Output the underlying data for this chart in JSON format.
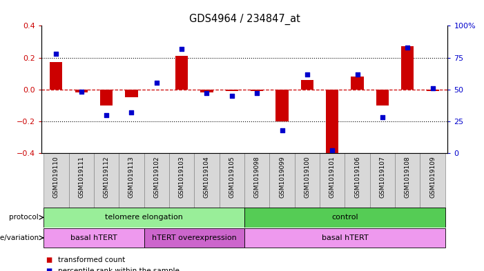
{
  "title": "GDS4964 / 234847_at",
  "samples": [
    "GSM1019110",
    "GSM1019111",
    "GSM1019112",
    "GSM1019113",
    "GSM1019102",
    "GSM1019103",
    "GSM1019104",
    "GSM1019105",
    "GSM1019098",
    "GSM1019099",
    "GSM1019100",
    "GSM1019101",
    "GSM1019106",
    "GSM1019107",
    "GSM1019108",
    "GSM1019109"
  ],
  "bar_values": [
    0.17,
    -0.02,
    -0.1,
    -0.05,
    0.0,
    0.21,
    -0.02,
    -0.01,
    -0.01,
    -0.2,
    0.06,
    -0.4,
    0.08,
    -0.1,
    0.27,
    -0.01
  ],
  "dot_values": [
    78,
    48,
    30,
    32,
    55,
    82,
    47,
    45,
    47,
    18,
    62,
    2,
    62,
    28,
    83,
    51
  ],
  "bar_color": "#cc0000",
  "dot_color": "#0000cc",
  "ylim_left": [
    -0.4,
    0.4
  ],
  "ylim_right": [
    0,
    100
  ],
  "yticks_left": [
    -0.4,
    -0.2,
    0.0,
    0.2,
    0.4
  ],
  "yticks_right": [
    0,
    25,
    50,
    75,
    100
  ],
  "ytick_labels_right": [
    "0",
    "25",
    "50",
    "75",
    "100%"
  ],
  "dotted_lines": [
    -0.2,
    0.2
  ],
  "protocol_groups": [
    {
      "text": "telomere elongation",
      "start": 0,
      "end": 7,
      "color": "#99ee99"
    },
    {
      "text": "control",
      "start": 8,
      "end": 15,
      "color": "#55cc55"
    }
  ],
  "genotype_groups": [
    {
      "text": "basal hTERT",
      "start": 0,
      "end": 3,
      "color": "#ee99ee"
    },
    {
      "text": "hTERT overexpression",
      "start": 4,
      "end": 7,
      "color": "#cc66cc"
    },
    {
      "text": "basal hTERT",
      "start": 8,
      "end": 15,
      "color": "#ee99ee"
    }
  ],
  "legend_items": [
    {
      "color": "#cc0000",
      "label": "transformed count"
    },
    {
      "color": "#0000cc",
      "label": "percentile rank within the sample"
    }
  ],
  "bg_color": "#ffffff",
  "label_bg": "#d8d8d8",
  "label_edge": "#aaaaaa",
  "tick_color_left": "#cc0000",
  "tick_color_right": "#0000cc"
}
